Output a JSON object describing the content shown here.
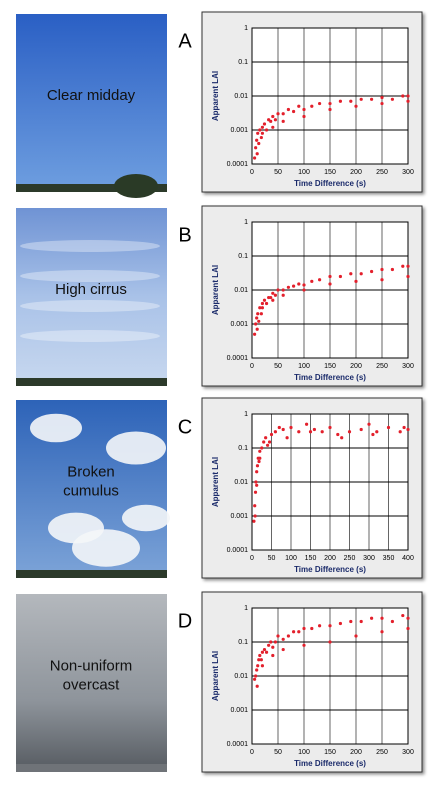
{
  "photos": [
    {
      "label_lines": [
        "Clear midday"
      ]
    },
    {
      "label_lines": [
        "High cirrus"
      ]
    },
    {
      "label_lines": [
        "Broken",
        "cumulus"
      ]
    },
    {
      "label_lines": [
        "Non-uniform",
        "overcast"
      ]
    }
  ],
  "chart_data": [
    {
      "type": "scatter",
      "panel": "A",
      "xlabel": "Time Difference (s)",
      "ylabel": "Apparent LAI",
      "log_y": true,
      "grid": true,
      "color": "#e3202c",
      "xlim": [
        0,
        300
      ],
      "xticks": [
        0,
        50,
        100,
        150,
        200,
        250,
        300
      ],
      "ylim": [
        0.0001,
        1
      ],
      "yticks": [
        0.0001,
        0.001,
        0.01,
        0.1,
        1
      ],
      "x": [
        5,
        7,
        9,
        11,
        13,
        15,
        18,
        20,
        24,
        28,
        32,
        36,
        40,
        45,
        50,
        60,
        70,
        80,
        90,
        100,
        115,
        130,
        150,
        170,
        190,
        210,
        230,
        250,
        270,
        290,
        300,
        10,
        20,
        40,
        60,
        100,
        150,
        200,
        250,
        300
      ],
      "y": [
        0.00015,
        0.0003,
        0.0005,
        0.0008,
        0.0004,
        0.001,
        0.0006,
        0.0012,
        0.0015,
        0.001,
        0.002,
        0.0018,
        0.0025,
        0.002,
        0.003,
        0.003,
        0.004,
        0.0035,
        0.005,
        0.004,
        0.005,
        0.006,
        0.006,
        0.007,
        0.007,
        0.008,
        0.008,
        0.009,
        0.008,
        0.01,
        0.01,
        0.0002,
        0.0008,
        0.0012,
        0.0018,
        0.0025,
        0.004,
        0.005,
        0.006,
        0.007
      ]
    },
    {
      "type": "scatter",
      "panel": "B",
      "xlabel": "Time Difference (s)",
      "ylabel": "Apparent LAI",
      "log_y": true,
      "grid": true,
      "color": "#e3202c",
      "xlim": [
        0,
        300
      ],
      "xticks": [
        0,
        50,
        100,
        150,
        200,
        250,
        300
      ],
      "ylim": [
        0.0001,
        1
      ],
      "yticks": [
        0.0001,
        0.001,
        0.01,
        0.1,
        1
      ],
      "x": [
        5,
        7,
        9,
        11,
        13,
        15,
        18,
        20,
        24,
        28,
        32,
        36,
        40,
        45,
        50,
        60,
        70,
        80,
        90,
        100,
        115,
        130,
        150,
        170,
        190,
        210,
        230,
        250,
        270,
        290,
        300,
        10,
        20,
        40,
        60,
        100,
        150,
        200,
        250,
        300
      ],
      "y": [
        0.0005,
        0.001,
        0.0015,
        0.002,
        0.0012,
        0.003,
        0.002,
        0.004,
        0.005,
        0.004,
        0.006,
        0.006,
        0.008,
        0.007,
        0.01,
        0.01,
        0.012,
        0.013,
        0.015,
        0.014,
        0.018,
        0.02,
        0.025,
        0.025,
        0.03,
        0.03,
        0.035,
        0.04,
        0.04,
        0.05,
        0.05,
        0.0007,
        0.003,
        0.005,
        0.007,
        0.01,
        0.015,
        0.018,
        0.02,
        0.025
      ]
    },
    {
      "type": "scatter",
      "panel": "C",
      "xlabel": "Time Difference (s)",
      "ylabel": "Apparent LAI",
      "log_y": true,
      "grid": true,
      "color": "#e3202c",
      "xlim": [
        0,
        400
      ],
      "xticks": [
        0,
        50,
        100,
        150,
        200,
        250,
        300,
        350,
        400
      ],
      "ylim": [
        0.0001,
        1
      ],
      "yticks": [
        0.0001,
        0.001,
        0.01,
        0.1,
        1
      ],
      "x": [
        5,
        7,
        9,
        10,
        12,
        14,
        16,
        18,
        20,
        25,
        30,
        35,
        40,
        50,
        60,
        70,
        80,
        100,
        120,
        140,
        160,
        180,
        200,
        220,
        250,
        280,
        300,
        320,
        350,
        380,
        400,
        8,
        12,
        20,
        45,
        90,
        150,
        230,
        310,
        390
      ],
      "y": [
        0.0007,
        0.002,
        0.005,
        0.01,
        0.02,
        0.03,
        0.05,
        0.04,
        0.08,
        0.1,
        0.15,
        0.2,
        0.12,
        0.25,
        0.3,
        0.4,
        0.35,
        0.4,
        0.3,
        0.5,
        0.35,
        0.3,
        0.4,
        0.25,
        0.3,
        0.35,
        0.5,
        0.3,
        0.4,
        0.3,
        0.35,
        0.001,
        0.008,
        0.05,
        0.15,
        0.2,
        0.3,
        0.2,
        0.25,
        0.4
      ]
    },
    {
      "type": "scatter",
      "panel": "D",
      "xlabel": "Time Difference (s)",
      "ylabel": "Apparent LAI",
      "log_y": true,
      "grid": true,
      "color": "#e3202c",
      "xlim": [
        0,
        300
      ],
      "xticks": [
        0,
        50,
        100,
        150,
        200,
        250,
        300
      ],
      "ylim": [
        0.0001,
        1
      ],
      "yticks": [
        0.0001,
        0.001,
        0.01,
        0.1,
        1
      ],
      "x": [
        5,
        7,
        9,
        11,
        13,
        15,
        18,
        20,
        24,
        28,
        32,
        36,
        40,
        45,
        50,
        60,
        70,
        80,
        90,
        100,
        115,
        130,
        150,
        170,
        190,
        210,
        230,
        250,
        270,
        290,
        300,
        10,
        20,
        40,
        60,
        100,
        150,
        200,
        250,
        300
      ],
      "y": [
        0.008,
        0.01,
        0.015,
        0.02,
        0.03,
        0.04,
        0.03,
        0.05,
        0.06,
        0.05,
        0.08,
        0.1,
        0.07,
        0.1,
        0.15,
        0.12,
        0.15,
        0.2,
        0.2,
        0.25,
        0.25,
        0.3,
        0.3,
        0.35,
        0.4,
        0.4,
        0.5,
        0.5,
        0.4,
        0.6,
        0.5,
        0.005,
        0.02,
        0.04,
        0.06,
        0.08,
        0.1,
        0.15,
        0.2,
        0.25
      ]
    }
  ]
}
